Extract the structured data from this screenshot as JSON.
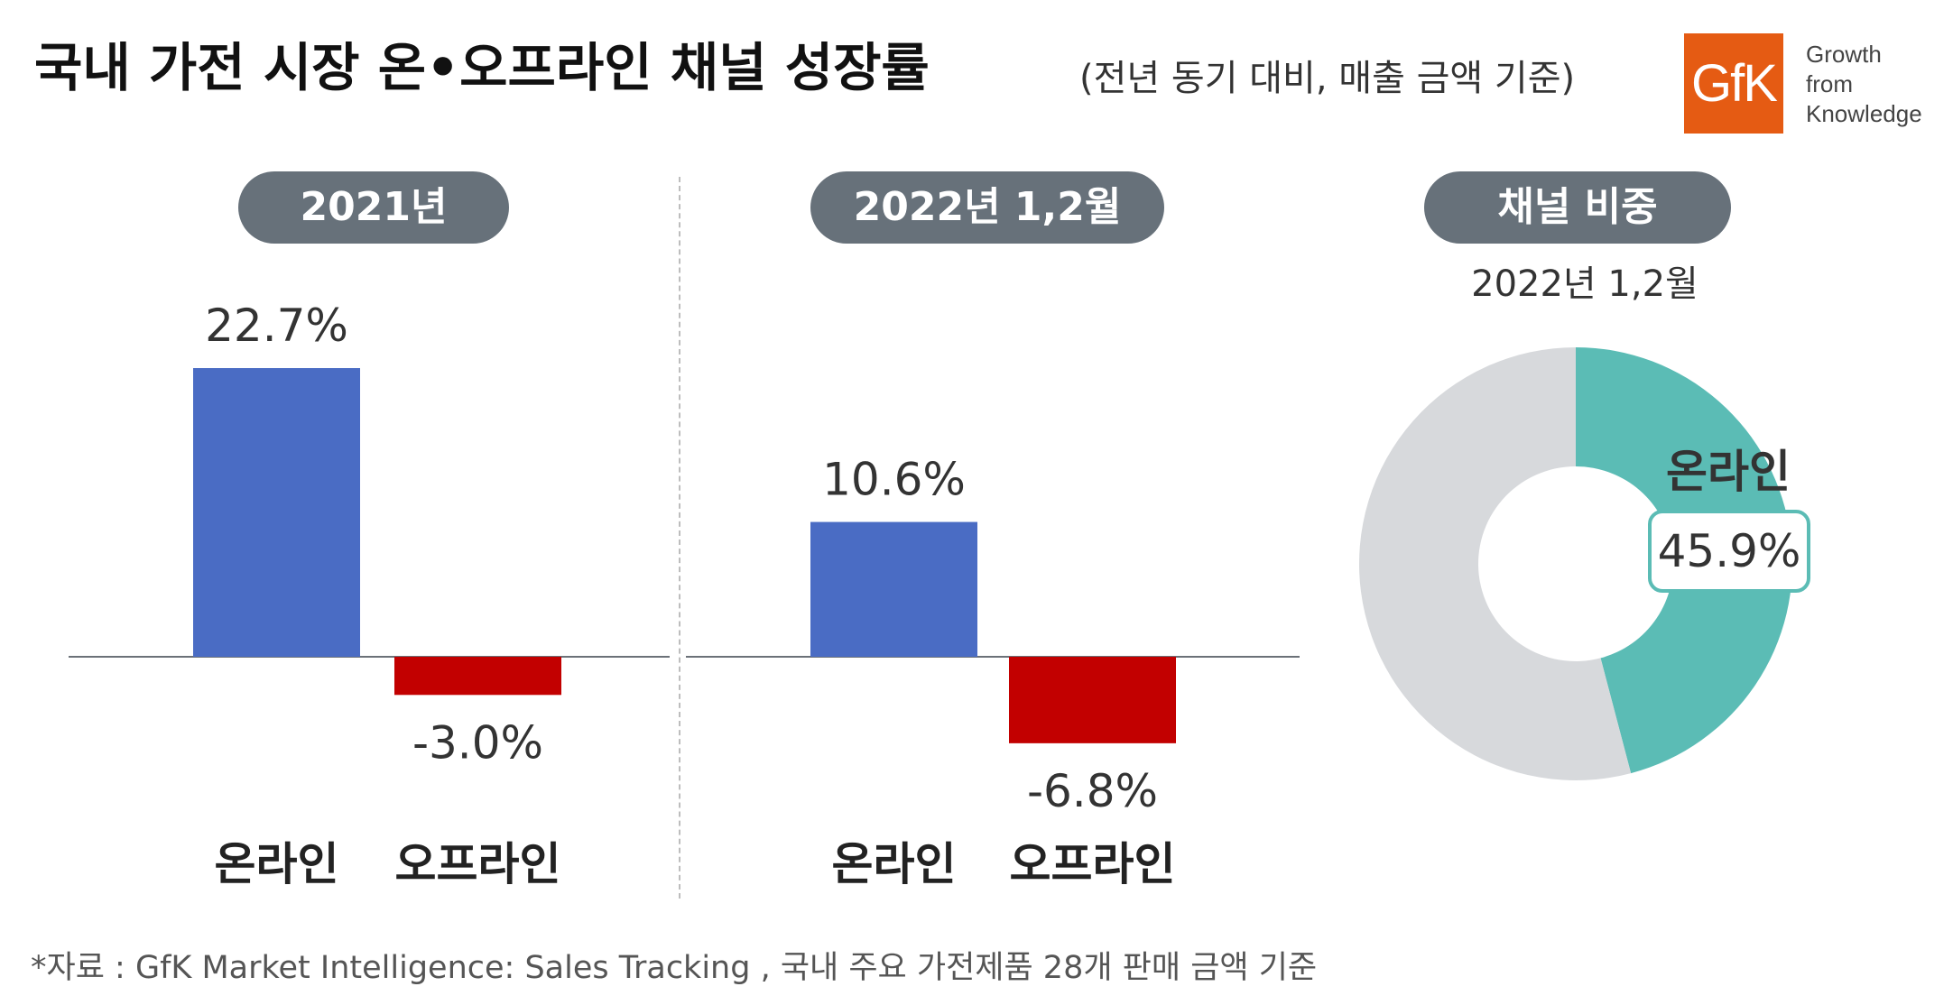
{
  "title": "국내 가전 시장 온•오프라인 채널 성장률",
  "subtitle": "(전년 동기 대비, 매출 금액 기준)",
  "logo": {
    "mark": "GfK",
    "tagline": [
      "Growth",
      "from",
      "Knowledge"
    ],
    "color": "#e55b13"
  },
  "colors": {
    "online": "#4a6cc4",
    "offline": "#c20000",
    "pie_online": "#5bbcb5",
    "pie_rest": "#d7d9dc",
    "pill": "#67717a"
  },
  "chart_data": [
    {
      "type": "bar",
      "title": "2021년",
      "categories": [
        "온라인",
        "오프라인"
      ],
      "values": [
        22.7,
        -3.0
      ],
      "value_labels": [
        "22.7%",
        "-3.0%"
      ]
    },
    {
      "type": "bar",
      "title": "2022년 1,2월",
      "categories": [
        "온라인",
        "오프라인"
      ],
      "values": [
        10.6,
        -6.8
      ],
      "value_labels": [
        "10.6%",
        "-6.8%"
      ]
    },
    {
      "type": "pie",
      "title": "채널 비중",
      "subtitle": "2022년 1,2월",
      "slices": [
        {
          "label": "온라인",
          "value": 45.9,
          "value_label": "45.9%"
        },
        {
          "label": "",
          "value": 54.1
        }
      ]
    }
  ],
  "footnote": "*자료 : GfK Market Intelligence: Sales Tracking , 국내 주요 가전제품 28개 판매 금액 기준"
}
